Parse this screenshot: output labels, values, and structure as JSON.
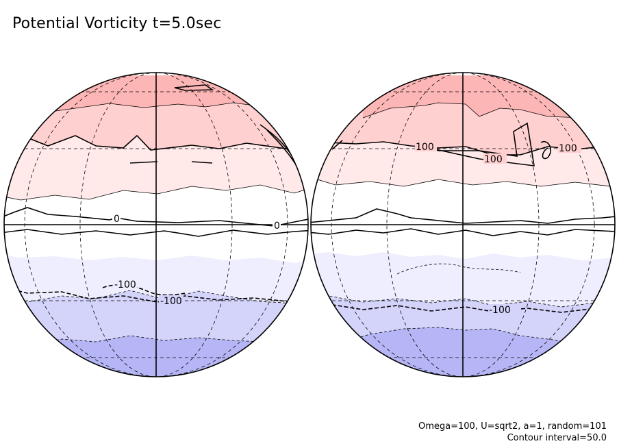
{
  "title": "Potential Vorticity t=5.0sec",
  "contour_labels": [
    "-100",
    "-100",
    "-100",
    "0",
    "0",
    "100",
    "100",
    "100"
  ],
  "footer": {
    "params": "Omega=100, U=sqrt2, a=1, random=101",
    "interval": "Contour interval=50.0"
  },
  "colors": {
    "pos_strong": "#fdb6b6",
    "pos_mid": "#ffd0d0",
    "pos_weak": "#ffe9e9",
    "zero": "#ffffff",
    "neg_weak": "#eeeefe",
    "neg_mid": "#d4d4fb",
    "neg_strong": "#b6b6f6"
  }
}
